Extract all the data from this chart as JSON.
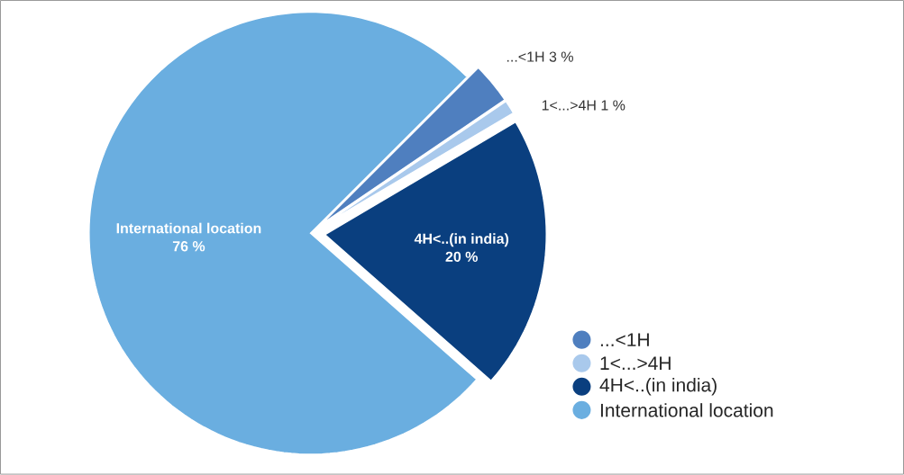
{
  "chart_data": {
    "type": "pie",
    "categories": [
      "...<1H",
      "1<...>4H",
      "4H<..(in india)",
      "International location"
    ],
    "values": [
      3,
      1,
      20,
      76
    ],
    "colors": [
      "#4f7fbf",
      "#a9c9ec",
      "#0a3f7f",
      "#6aaee0"
    ],
    "value_labels": [
      "3 %",
      "1 %",
      "20 %",
      "76 %"
    ],
    "legend": "bottom right"
  }
}
